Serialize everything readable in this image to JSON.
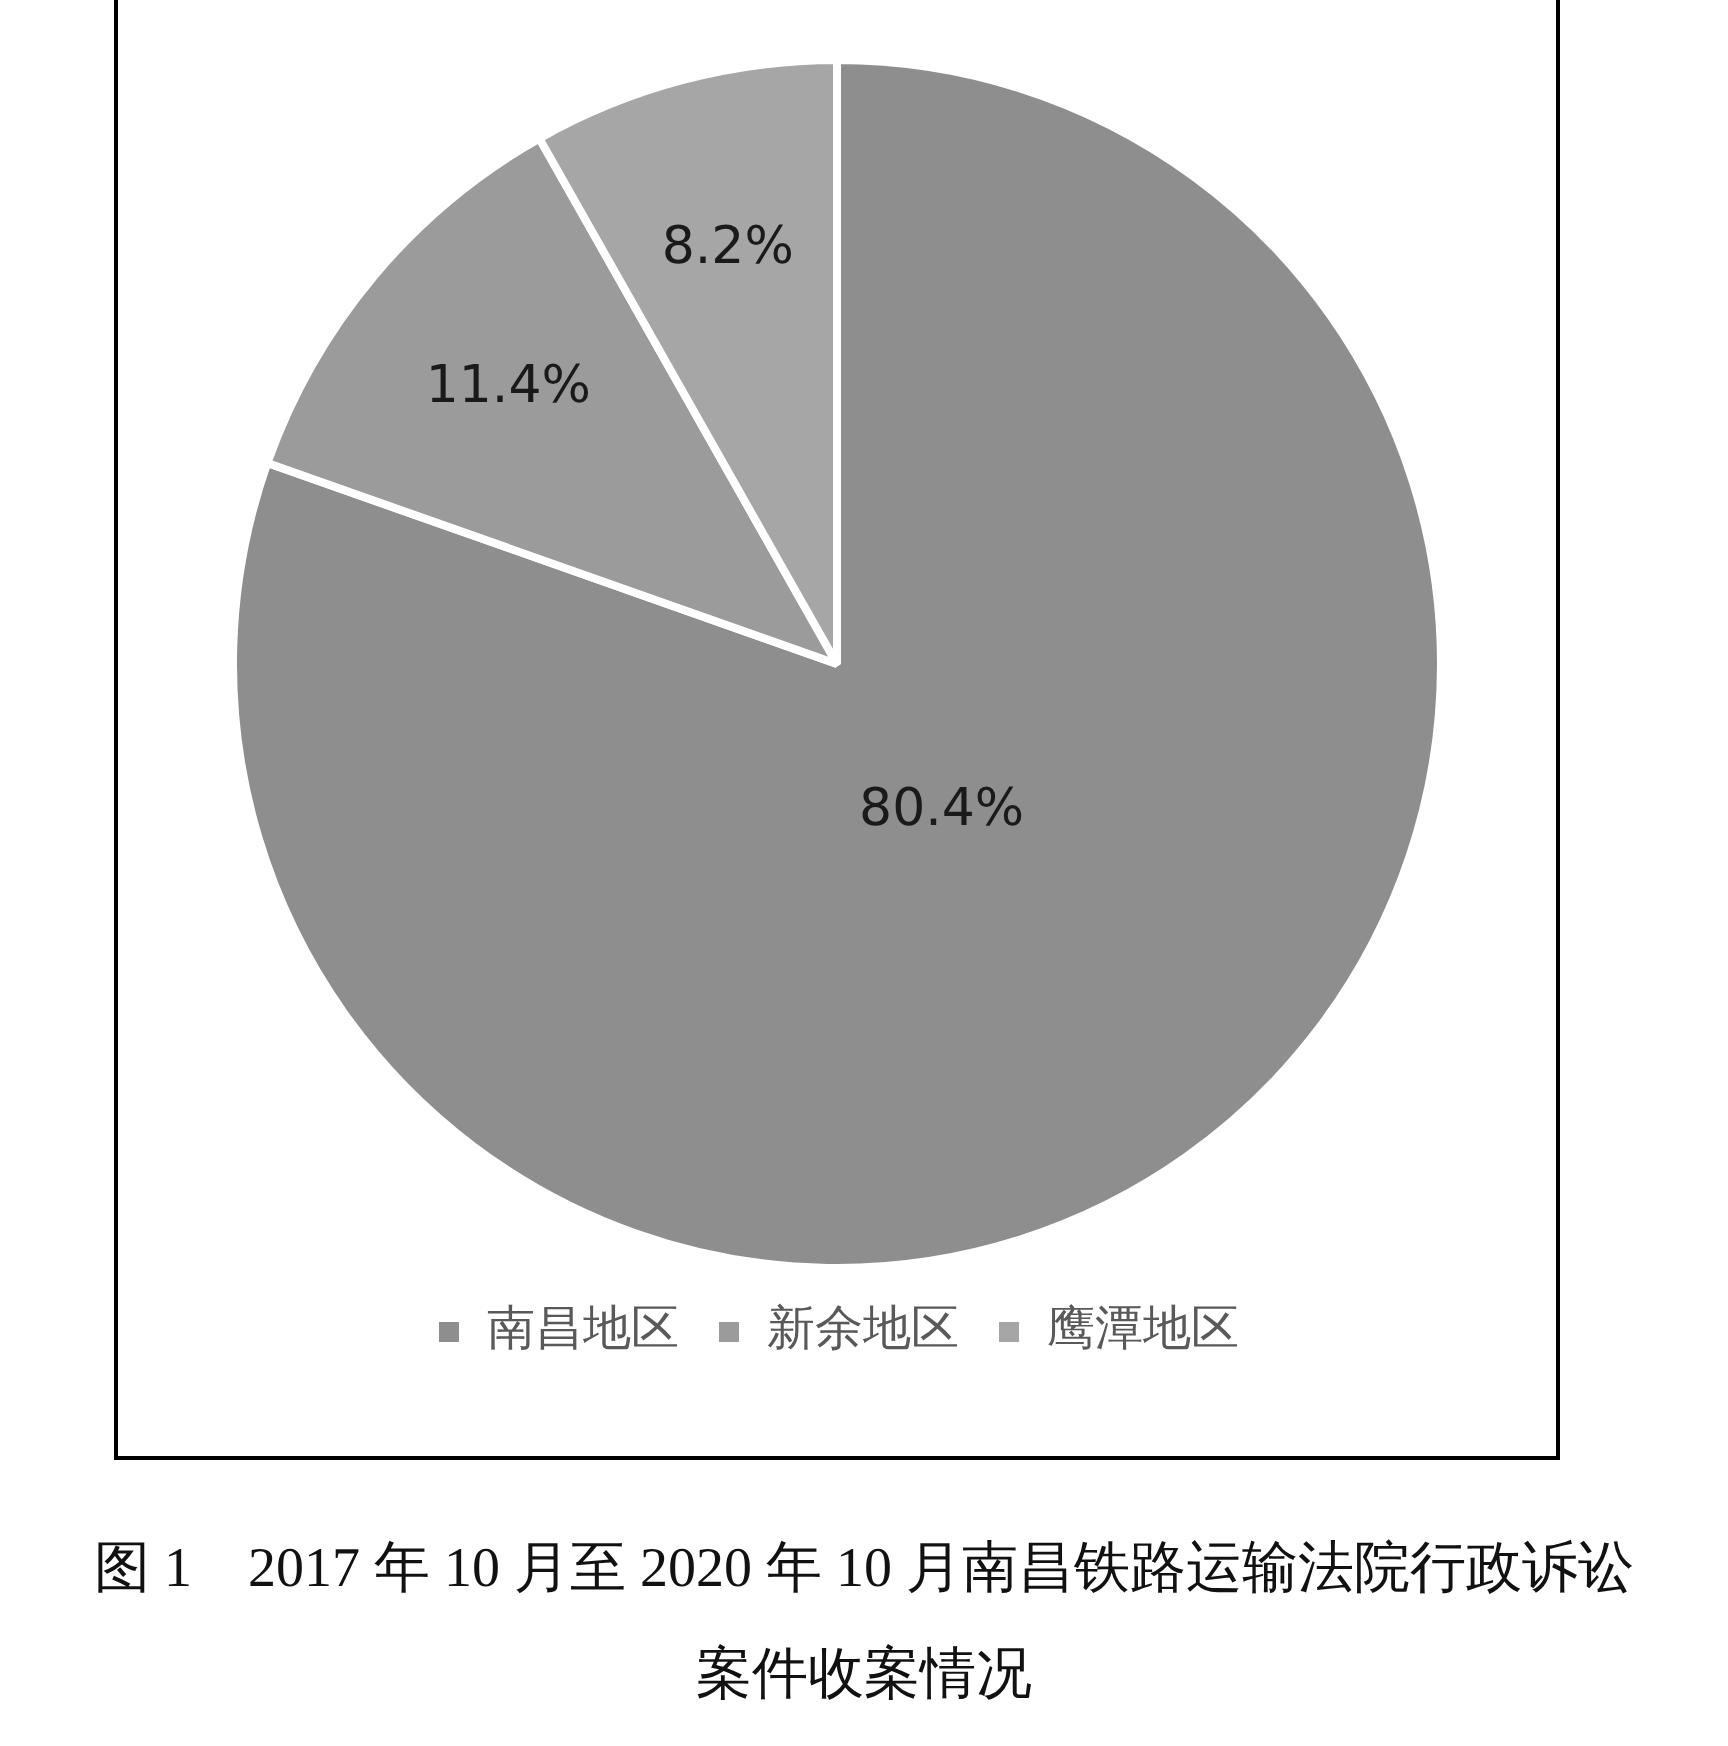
{
  "chart_data": {
    "type": "pie",
    "title": "图 1　2017 年 10 月至 2020 年 10 月南昌铁路运输法院行政诉讼案件收案情况",
    "categories": [
      "南昌地区",
      "新余地区",
      "鹰潭地区"
    ],
    "values": [
      80.4,
      11.4,
      8.2
    ],
    "value_labels": [
      "80.4%",
      "11.4%",
      "8.2%"
    ],
    "colors": [
      "#8e8e8e",
      "#9b9b9b",
      "#a6a6a6"
    ],
    "legend": "bottom"
  }
}
